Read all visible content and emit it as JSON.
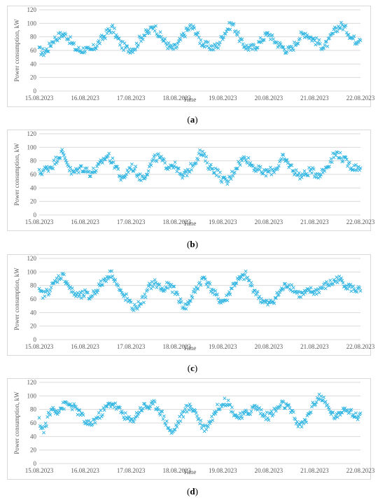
{
  "marker_color": "#33b6e2",
  "axis": {
    "ylabel": "Power consumption, kW",
    "xlabel": "Time",
    "yticks": [
      "0",
      "20",
      "40",
      "60",
      "80",
      "100",
      "120"
    ],
    "xticks": [
      "15.08.2023",
      "16.08.2023",
      "17.08.2023",
      "18.08.2023",
      "19.08.2023",
      "20.08.2023",
      "21.08.2023",
      "22.08.2023"
    ]
  },
  "panels": [
    {
      "caption_open": "(",
      "label": "a",
      "caption_close": ")"
    },
    {
      "caption_open": "(",
      "label": "b",
      "caption_close": ")"
    },
    {
      "caption_open": "(",
      "label": "c",
      "caption_close": ")"
    },
    {
      "caption_open": "(",
      "label": "d",
      "caption_close": ")"
    }
  ],
  "chart_data": [
    {
      "type": "scatter",
      "xlabel": "Time",
      "ylabel": "Power consumption, kW",
      "xlim": [
        "15.08.2023",
        "22.08.2023"
      ],
      "ylim": [
        0,
        120
      ],
      "marker": "x",
      "grid": true,
      "series": [
        {
          "x_days": [
            0,
            0.1,
            0.2,
            0.3,
            0.4,
            0.5,
            0.6,
            0.7,
            0.8,
            0.9,
            1,
            1.1,
            1.2,
            1.3,
            1.4,
            1.5,
            1.6,
            1.7,
            1.8,
            1.9,
            2,
            2.1,
            2.2,
            2.3,
            2.4,
            2.5,
            2.6,
            2.7,
            2.8,
            2.9,
            3,
            3.1,
            3.2,
            3.3,
            3.4,
            3.5,
            3.6,
            3.7,
            3.8,
            3.9,
            4,
            4.1,
            4.2,
            4.3,
            4.4,
            4.5,
            4.6,
            4.7,
            4.8,
            4.9,
            5,
            5.1,
            5.2,
            5.3,
            5.4,
            5.5,
            5.6,
            5.7,
            5.8,
            5.9,
            6,
            6.1,
            6.2,
            6.3,
            6.4,
            6.5,
            6.6,
            6.7,
            6.8,
            6.9,
            7
          ],
          "y": [
            60,
            57,
            63,
            75,
            80,
            84,
            82,
            72,
            62,
            60,
            62,
            58,
            64,
            72,
            80,
            88,
            93,
            78,
            68,
            63,
            62,
            65,
            78,
            84,
            88,
            97,
            85,
            76,
            68,
            62,
            66,
            78,
            88,
            95,
            90,
            75,
            68,
            66,
            64,
            68,
            82,
            92,
            100,
            88,
            72,
            66,
            63,
            65,
            72,
            80,
            85,
            76,
            70,
            65,
            60,
            62,
            72,
            82,
            86,
            80,
            75,
            70,
            65,
            72,
            85,
            94,
            97,
            90,
            80,
            74,
            80
          ]
        }
      ]
    },
    {
      "type": "scatter",
      "xlabel": "Time",
      "ylabel": "Power consumption, kW",
      "xlim": [
        "15.08.2023",
        "22.08.2023"
      ],
      "ylim": [
        0,
        120
      ],
      "marker": "x",
      "grid": true,
      "series": [
        {
          "x_days": [
            0,
            0.1,
            0.2,
            0.3,
            0.4,
            0.5,
            0.6,
            0.7,
            0.8,
            0.9,
            1,
            1.1,
            1.2,
            1.3,
            1.4,
            1.5,
            1.6,
            1.7,
            1.8,
            1.9,
            2,
            2.1,
            2.2,
            2.3,
            2.4,
            2.5,
            2.6,
            2.7,
            2.8,
            2.9,
            3,
            3.1,
            3.2,
            3.3,
            3.4,
            3.5,
            3.6,
            3.7,
            3.8,
            3.9,
            4,
            4.1,
            4.2,
            4.3,
            4.4,
            4.5,
            4.6,
            4.7,
            4.8,
            4.9,
            5,
            5.1,
            5.2,
            5.3,
            5.4,
            5.5,
            5.6,
            5.7,
            5.8,
            5.9,
            6,
            6.1,
            6.2,
            6.3,
            6.4,
            6.5,
            6.6,
            6.7,
            6.8,
            6.9,
            7
          ],
          "y": [
            62,
            66,
            70,
            74,
            85,
            92,
            80,
            62,
            64,
            70,
            68,
            62,
            65,
            72,
            82,
            88,
            78,
            70,
            50,
            62,
            72,
            66,
            55,
            58,
            70,
            82,
            86,
            78,
            72,
            75,
            70,
            55,
            62,
            70,
            80,
            92,
            86,
            72,
            68,
            62,
            52,
            48,
            60,
            72,
            80,
            86,
            76,
            70,
            66,
            62,
            64,
            66,
            72,
            84,
            78,
            70,
            62,
            58,
            60,
            66,
            62,
            60,
            66,
            75,
            86,
            92,
            84,
            78,
            72,
            70,
            72
          ]
        }
      ]
    },
    {
      "type": "scatter",
      "xlabel": "Time",
      "ylabel": "Power consumption, kW",
      "xlim": [
        "15.08.2023",
        "22.08.2023"
      ],
      "ylim": [
        0,
        120
      ],
      "marker": "x",
      "grid": true,
      "series": [
        {
          "x_days": [
            0,
            0.1,
            0.2,
            0.3,
            0.4,
            0.5,
            0.6,
            0.7,
            0.8,
            0.9,
            1,
            1.1,
            1.2,
            1.3,
            1.4,
            1.5,
            1.6,
            1.7,
            1.8,
            1.9,
            2,
            2.1,
            2.2,
            2.3,
            2.4,
            2.5,
            2.6,
            2.7,
            2.8,
            2.9,
            3,
            3.1,
            3.2,
            3.3,
            3.4,
            3.5,
            3.6,
            3.7,
            3.8,
            3.9,
            4,
            4.1,
            4.2,
            4.3,
            4.4,
            4.5,
            4.6,
            4.7,
            4.8,
            4.9,
            5,
            5.1,
            5.2,
            5.3,
            5.4,
            5.5,
            5.6,
            5.7,
            5.8,
            5.9,
            6,
            6.1,
            6.2,
            6.3,
            6.4,
            6.5,
            6.6,
            6.7,
            6.8,
            6.9,
            7
          ],
          "y": [
            70,
            66,
            72,
            80,
            90,
            96,
            86,
            72,
            66,
            64,
            68,
            62,
            70,
            78,
            86,
            95,
            98,
            80,
            66,
            62,
            50,
            46,
            55,
            62,
            78,
            84,
            80,
            72,
            80,
            76,
            68,
            52,
            48,
            60,
            72,
            84,
            92,
            80,
            70,
            60,
            56,
            62,
            78,
            86,
            90,
            95,
            82,
            72,
            62,
            55,
            52,
            58,
            66,
            75,
            82,
            78,
            70,
            66,
            68,
            72,
            70,
            74,
            78,
            82,
            84,
            90,
            86,
            80,
            76,
            74,
            72
          ]
        }
      ]
    },
    {
      "type": "scatter",
      "xlabel": "Time",
      "ylabel": "Power consumption, kW",
      "xlim": [
        "15.08.2023",
        "22.08.2023"
      ],
      "ylim": [
        0,
        120
      ],
      "marker": "x",
      "grid": true,
      "series": [
        {
          "x_days": [
            0,
            0.1,
            0.2,
            0.3,
            0.4,
            0.5,
            0.6,
            0.7,
            0.8,
            0.9,
            1,
            1.1,
            1.2,
            1.3,
            1.4,
            1.5,
            1.6,
            1.7,
            1.8,
            1.9,
            2,
            2.1,
            2.2,
            2.3,
            2.4,
            2.5,
            2.6,
            2.7,
            2.8,
            2.9,
            3,
            3.1,
            3.2,
            3.3,
            3.4,
            3.5,
            3.6,
            3.7,
            3.8,
            3.9,
            4,
            4.1,
            4.2,
            4.3,
            4.4,
            4.5,
            4.6,
            4.7,
            4.8,
            4.9,
            5,
            5.1,
            5.2,
            5.3,
            5.4,
            5.5,
            5.6,
            5.7,
            5.8,
            5.9,
            6,
            6.1,
            6.2,
            6.3,
            6.4,
            6.5,
            6.6,
            6.7,
            6.8,
            6.9,
            7
          ],
          "y": [
            62,
            48,
            70,
            82,
            78,
            84,
            88,
            86,
            80,
            74,
            62,
            56,
            64,
            70,
            78,
            86,
            90,
            82,
            76,
            68,
            62,
            70,
            80,
            86,
            84,
            88,
            82,
            70,
            56,
            44,
            58,
            70,
            80,
            84,
            78,
            62,
            52,
            60,
            72,
            84,
            90,
            92,
            80,
            70,
            68,
            74,
            78,
            84,
            80,
            70,
            70,
            76,
            82,
            88,
            84,
            76,
            62,
            56,
            62,
            78,
            90,
            100,
            92,
            82,
            72,
            68,
            80,
            84,
            74,
            70,
            72
          ]
        }
      ]
    }
  ]
}
